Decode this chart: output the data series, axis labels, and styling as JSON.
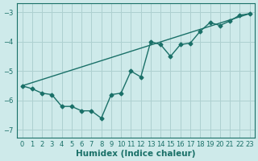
{
  "xlabel": "Humidex (Indice chaleur)",
  "bg_color": "#ceeaea",
  "grid_color": "#aed0d0",
  "line_color": "#1a7068",
  "xlim": [
    -0.5,
    23.5
  ],
  "ylim": [
    -7.25,
    -2.7
  ],
  "yticks": [
    -7,
    -6,
    -5,
    -4,
    -3
  ],
  "xticks": [
    0,
    1,
    2,
    3,
    4,
    5,
    6,
    7,
    8,
    9,
    10,
    11,
    12,
    13,
    14,
    15,
    16,
    17,
    18,
    19,
    20,
    21,
    22,
    23
  ],
  "line1_x": [
    0,
    1,
    2,
    3,
    4,
    5,
    6,
    7,
    8,
    9,
    10,
    11,
    12,
    13,
    14,
    15,
    16,
    17,
    18,
    19,
    20,
    21,
    22,
    23
  ],
  "line1_y": [
    -5.5,
    -5.6,
    -5.75,
    -5.8,
    -6.2,
    -6.2,
    -6.35,
    -6.35,
    -6.6,
    -5.8,
    -5.75,
    -5.0,
    -5.2,
    -4.0,
    -4.1,
    -4.5,
    -4.1,
    -4.05,
    -3.65,
    -3.35,
    -3.45,
    -3.3,
    -3.1,
    -3.05
  ],
  "line2_x": [
    0,
    23
  ],
  "line2_y": [
    -5.5,
    -3.05
  ],
  "marker": "D",
  "markersize": 2.5,
  "linewidth": 1.0,
  "tick_fontsize": 6.0,
  "label_fontsize": 7.5
}
